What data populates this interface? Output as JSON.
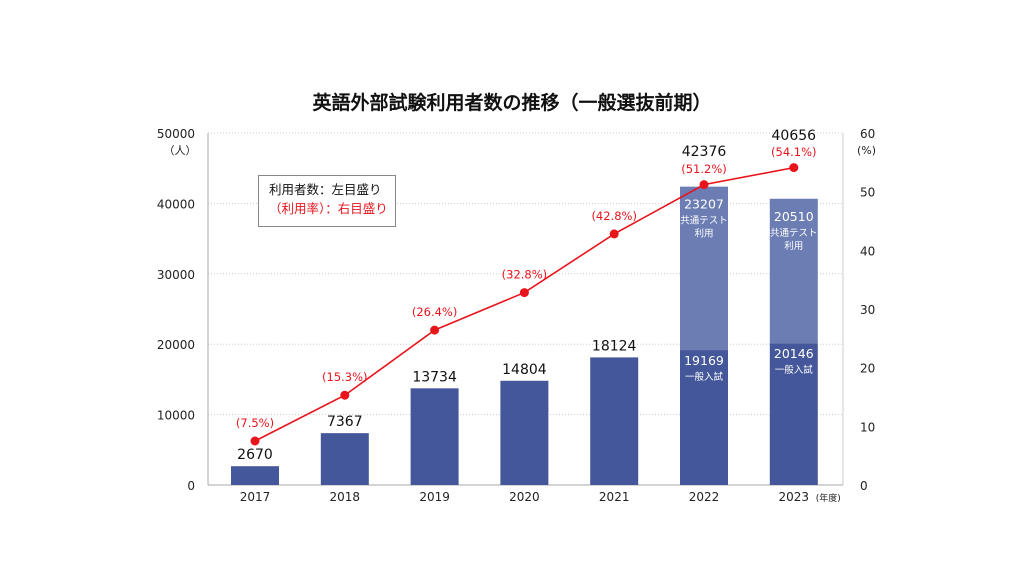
{
  "chart_data": {
    "type": "bar+line",
    "title": "英語外部試験利用者数の推移（一般選抜前期）",
    "categories": [
      "2017",
      "2018",
      "2019",
      "2020",
      "2021",
      "2022",
      "2023"
    ],
    "x_unit_label": "(年度)",
    "left_axis": {
      "unit_label": "（人）",
      "range": [
        0,
        50000
      ],
      "ticks": [
        0,
        10000,
        20000,
        30000,
        40000,
        50000
      ]
    },
    "right_axis": {
      "unit_label": "(%)",
      "range": [
        0,
        60
      ],
      "ticks": [
        0,
        10,
        20,
        30,
        40,
        50,
        60
      ]
    },
    "grid": "horizontal dotted",
    "totals": [
      2670,
      7367,
      13734,
      14804,
      18124,
      42376,
      40656
    ],
    "series": [
      {
        "name": "一般入試",
        "values": [
          2670,
          7367,
          13734,
          14804,
          18124,
          19169,
          20146
        ],
        "color": "#44579a"
      },
      {
        "name": "共通テスト利用",
        "values": [
          null,
          null,
          null,
          null,
          null,
          23207,
          20510
        ],
        "color": "#6b7db3"
      }
    ],
    "segment_labels": {
      "general": "一般入試",
      "common_test_line1": "共通テスト",
      "common_test_line2": "利用"
    },
    "rate": {
      "values": [
        7.5,
        15.3,
        26.4,
        32.8,
        42.8,
        51.2,
        54.1
      ],
      "labels": [
        "(7.5%)",
        "(15.3%)",
        "(26.4%)",
        "(32.8%)",
        "(42.8%)",
        "(51.2%)",
        "(54.1%)"
      ],
      "color": "#e8141c"
    },
    "legend": {
      "line1": "利用者数：左目盛り",
      "line2": "（利用率）：右目盛り",
      "placement": "top-left"
    }
  }
}
